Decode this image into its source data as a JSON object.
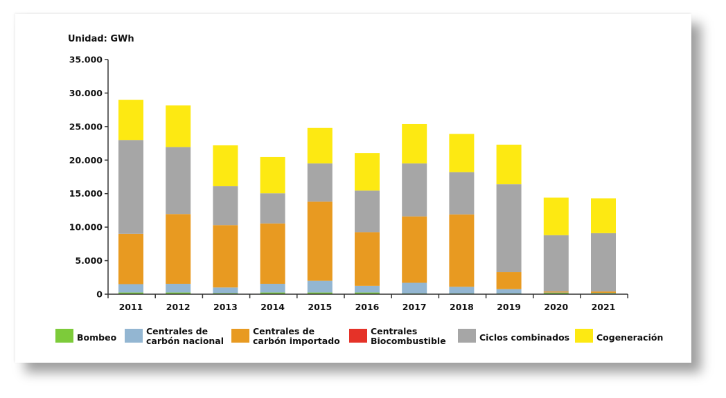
{
  "chart_data": {
    "type": "bar",
    "stacked": true,
    "unit_label": "Unidad: GWh",
    "categories": [
      "2011",
      "2012",
      "2013",
      "2014",
      "2015",
      "2016",
      "2017",
      "2018",
      "2019",
      "2020",
      "2021"
    ],
    "ylim": [
      0,
      35000
    ],
    "yticks": [
      0,
      5000,
      10000,
      15000,
      20000,
      25000,
      30000,
      35000
    ],
    "ytick_labels": [
      "0",
      "5.000",
      "10.000",
      "15.000",
      "20.000",
      "25.000",
      "30.000",
      "35.000"
    ],
    "grid": false,
    "legend_position": "bottom",
    "series": [
      {
        "name": "Bombeo",
        "legend_lines": [
          "Bombeo"
        ],
        "color": "#7dcb3a",
        "values": [
          250,
          250,
          150,
          250,
          250,
          250,
          100,
          100,
          100,
          200,
          150
        ]
      },
      {
        "name": "Centrales de carbón nacional",
        "legend_lines": [
          "Centrales de",
          "carbón nacional"
        ],
        "color": "#93b6d2",
        "values": [
          1250,
          1300,
          850,
          1300,
          1750,
          1000,
          1600,
          1000,
          650,
          50,
          50
        ]
      },
      {
        "name": "Centrales de carbón importado",
        "legend_lines": [
          "Centrales de",
          "carbón importado"
        ],
        "color": "#e89a21",
        "values": [
          7500,
          10400,
          9300,
          9000,
          11800,
          8000,
          9900,
          10800,
          2550,
          150,
          200
        ]
      },
      {
        "name": "Centrales Biocombustible",
        "legend_lines": [
          "Centrales",
          "Biocombustible"
        ],
        "color": "#e53228",
        "values": [
          0,
          0,
          0,
          0,
          0,
          0,
          0,
          0,
          0,
          0,
          0
        ]
      },
      {
        "name": "Ciclos combinados",
        "legend_lines": [
          "Ciclos combinados"
        ],
        "color": "#a6a6a6",
        "values": [
          14000,
          10000,
          5800,
          4500,
          5700,
          6200,
          7900,
          6300,
          13100,
          8400,
          8700
        ]
      },
      {
        "name": "Cogeneración",
        "legend_lines": [
          "Cogeneración"
        ],
        "color": "#fde912",
        "values": [
          6000,
          6200,
          6100,
          5400,
          5300,
          5600,
          5900,
          5700,
          5900,
          5600,
          5200
        ]
      }
    ]
  }
}
